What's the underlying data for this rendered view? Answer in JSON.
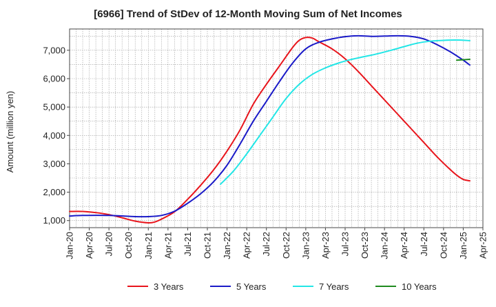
{
  "chart_data": {
    "type": "line",
    "title": "[6966]  Trend of StDev of 12-Month Moving Sum of Net Incomes",
    "ylabel": "Amount (million yen)",
    "xlabel": "",
    "ylim": [
      750,
      7750
    ],
    "yticks": [
      1000,
      2000,
      3000,
      4000,
      5000,
      6000,
      7000
    ],
    "ytick_labels": [
      "1,000",
      "2,000",
      "3,000",
      "4,000",
      "5,000",
      "6,000",
      "7,000"
    ],
    "xlim": [
      "2020-01",
      "2025-04"
    ],
    "xticks": [
      "2020-01",
      "2020-04",
      "2020-07",
      "2020-10",
      "2021-01",
      "2021-04",
      "2021-07",
      "2021-10",
      "2022-01",
      "2022-04",
      "2022-07",
      "2022-10",
      "2023-01",
      "2023-04",
      "2023-07",
      "2023-10",
      "2024-01",
      "2024-04",
      "2024-07",
      "2024-10",
      "2025-01",
      "2025-04"
    ],
    "xtick_labels": [
      "Jan-20",
      "Apr-20",
      "Jul-20",
      "Oct-20",
      "Jan-21",
      "Apr-21",
      "Jul-21",
      "Oct-21",
      "Jan-22",
      "Apr-22",
      "Jul-22",
      "Oct-22",
      "Jan-23",
      "Apr-23",
      "Jul-23",
      "Oct-23",
      "Jan-24",
      "Apr-24",
      "Jul-24",
      "Oct-24",
      "Jan-25",
      "Apr-25"
    ],
    "grid": true,
    "legend_position": "bottom",
    "series": [
      {
        "name": "3 Years",
        "color": "#e8141b",
        "points": [
          [
            "2020-01",
            1320
          ],
          [
            "2020-03",
            1320
          ],
          [
            "2020-05",
            1280
          ],
          [
            "2020-07",
            1210
          ],
          [
            "2020-09",
            1100
          ],
          [
            "2020-11",
            980
          ],
          [
            "2021-01",
            920
          ],
          [
            "2021-02",
            950
          ],
          [
            "2021-03",
            1050
          ],
          [
            "2021-05",
            1310
          ],
          [
            "2021-07",
            1750
          ],
          [
            "2021-09",
            2250
          ],
          [
            "2021-11",
            2800
          ],
          [
            "2022-01",
            3450
          ],
          [
            "2022-03",
            4200
          ],
          [
            "2022-05",
            5100
          ],
          [
            "2022-07",
            5800
          ],
          [
            "2022-09",
            6450
          ],
          [
            "2022-11",
            7100
          ],
          [
            "2022-12",
            7350
          ],
          [
            "2023-01",
            7450
          ],
          [
            "2023-02",
            7430
          ],
          [
            "2023-03",
            7300
          ],
          [
            "2023-05",
            7050
          ],
          [
            "2023-07",
            6700
          ],
          [
            "2023-09",
            6250
          ],
          [
            "2023-11",
            5750
          ],
          [
            "2024-01",
            5250
          ],
          [
            "2024-03",
            4750
          ],
          [
            "2024-05",
            4250
          ],
          [
            "2024-07",
            3750
          ],
          [
            "2024-09",
            3250
          ],
          [
            "2024-11",
            2800
          ],
          [
            "2024-12",
            2600
          ],
          [
            "2025-01",
            2450
          ],
          [
            "2025-02",
            2400
          ]
        ]
      },
      {
        "name": "5 Years",
        "color": "#1a1ac8",
        "points": [
          [
            "2020-01",
            1160
          ],
          [
            "2020-03",
            1180
          ],
          [
            "2020-07",
            1180
          ],
          [
            "2020-11",
            1140
          ],
          [
            "2021-01",
            1140
          ],
          [
            "2021-03",
            1180
          ],
          [
            "2021-05",
            1330
          ],
          [
            "2021-07",
            1610
          ],
          [
            "2021-09",
            1950
          ],
          [
            "2021-11",
            2380
          ],
          [
            "2022-01",
            2950
          ],
          [
            "2022-03",
            3700
          ],
          [
            "2022-05",
            4500
          ],
          [
            "2022-07",
            5200
          ],
          [
            "2022-09",
            5900
          ],
          [
            "2022-11",
            6550
          ],
          [
            "2023-01",
            7050
          ],
          [
            "2023-03",
            7280
          ],
          [
            "2023-05",
            7400
          ],
          [
            "2023-07",
            7480
          ],
          [
            "2023-09",
            7510
          ],
          [
            "2023-11",
            7490
          ],
          [
            "2024-01",
            7500
          ],
          [
            "2024-03",
            7510
          ],
          [
            "2024-05",
            7490
          ],
          [
            "2024-07",
            7400
          ],
          [
            "2024-09",
            7200
          ],
          [
            "2024-11",
            6950
          ],
          [
            "2025-01",
            6650
          ],
          [
            "2025-02",
            6480
          ]
        ]
      },
      {
        "name": "7 Years",
        "color": "#22e6e6",
        "points": [
          [
            "2021-12",
            2280
          ],
          [
            "2022-02",
            2750
          ],
          [
            "2022-04",
            3350
          ],
          [
            "2022-06",
            4000
          ],
          [
            "2022-08",
            4650
          ],
          [
            "2022-10",
            5300
          ],
          [
            "2022-12",
            5800
          ],
          [
            "2023-02",
            6150
          ],
          [
            "2023-04",
            6380
          ],
          [
            "2023-06",
            6550
          ],
          [
            "2023-08",
            6680
          ],
          [
            "2023-10",
            6780
          ],
          [
            "2023-12",
            6880
          ],
          [
            "2024-02",
            7000
          ],
          [
            "2024-04",
            7130
          ],
          [
            "2024-06",
            7250
          ],
          [
            "2024-08",
            7320
          ],
          [
            "2024-10",
            7350
          ],
          [
            "2024-12",
            7360
          ],
          [
            "2025-02",
            7340
          ]
        ]
      },
      {
        "name": "10 Years",
        "color": "#1e8a1e",
        "points": [
          [
            "2024-12",
            6650
          ],
          [
            "2025-02",
            6680
          ]
        ]
      }
    ]
  }
}
